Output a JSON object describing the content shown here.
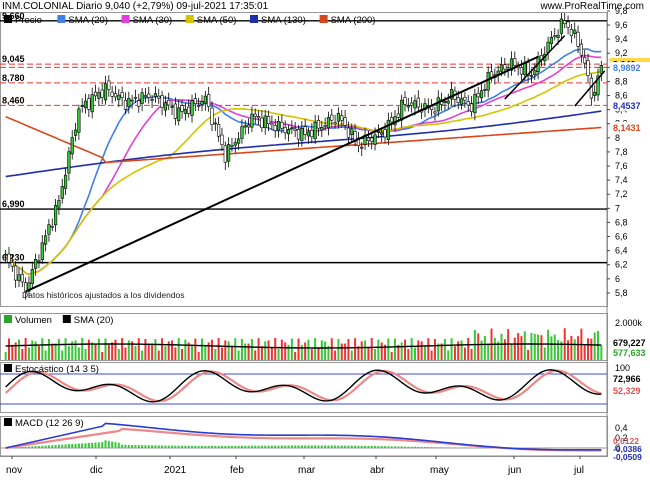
{
  "header": {
    "title": "INM.COLONIAL Diario 9,040 (+2,79%) 09-jul-2021 17:35:01",
    "site": "www.ProRealTime.com"
  },
  "chart_data": {
    "type": "candlestick",
    "price_panel": {
      "legend": [
        {
          "label": "Precio",
          "color": "#000000"
        },
        {
          "label": "SMA (20)",
          "color": "#3f7fe6"
        },
        {
          "label": "SMA (30)",
          "color": "#e040d8"
        },
        {
          "label": "SMA (50)",
          "color": "#d4c400"
        },
        {
          "label": "SMA (130)",
          "color": "#1f2fa8"
        },
        {
          "label": "SMA (200)",
          "color": "#d9461a"
        }
      ],
      "y_ticks": [
        "9,8",
        "9,6",
        "9,4",
        "9,2",
        "9",
        "8,8",
        "8,6",
        "8,4",
        "8,2",
        "8",
        "7,8",
        "7,6",
        "7,4",
        "7,2",
        "7",
        "6,8",
        "6,6",
        "6,4",
        "6,2",
        "6",
        "5,8"
      ],
      "y_range": [
        5.7,
        9.87
      ],
      "level_labels": [
        "9,660",
        "9,045",
        "8,780",
        "8,460",
        "6,990",
        "6,230"
      ],
      "value_tags": [
        {
          "text": "9,0455",
          "color": "#e040d8",
          "bg": "#ffffff",
          "price": 9.0455
        },
        {
          "text": "9,040",
          "color": "#000000",
          "bg": "#ffd84a",
          "price": 9.04
        },
        {
          "text": "8,9892",
          "color": "#3f7fe6",
          "bg": "#ffffff",
          "price": 8.9892
        },
        {
          "text": "8,4537",
          "color": "#1f2fa8",
          "bg": "#ffffff",
          "price": 8.4537
        },
        {
          "text": "8,1431",
          "color": "#d9461a",
          "bg": "#ffffff",
          "price": 8.1431
        }
      ],
      "note": "Datos históricos ajustados a los dividendos",
      "horizontal_levels_black": [
        9.66,
        6.99,
        6.23
      ],
      "horizontal_levels_red_dashed": [
        9.045,
        9.0,
        8.78,
        8.46
      ]
    },
    "volume_panel": {
      "legend": [
        {
          "label": "Volumen",
          "color": "#2aa52a"
        },
        {
          "label": "SMA (20)",
          "color": "#000000"
        }
      ],
      "y_ticks": [
        "2.000k"
      ],
      "value_tags": [
        {
          "text": "679,227",
          "color": "#000000"
        },
        {
          "text": "577,633",
          "color": "#2aa52a"
        }
      ]
    },
    "stochastic_panel": {
      "legend": [
        {
          "label": "Estocástico (14 3 5)",
          "color": "#000000"
        }
      ],
      "y_ticks": [
        "100"
      ],
      "value_tags": [
        {
          "text": "72,966",
          "color": "#000000"
        },
        {
          "text": "52,329",
          "color": "#e05050"
        }
      ]
    },
    "macd_panel": {
      "legend": [
        {
          "label": "MACD (12 26 9)",
          "color": "#000000"
        }
      ],
      "y_ticks": [
        "0,4",
        "0,2",
        "0"
      ],
      "value_tags": [
        {
          "text": "0,0122",
          "color": "#e05050"
        },
        {
          "text": "-0,0386",
          "color": "#1f2fa8"
        },
        {
          "text": "-0,0509",
          "color": "#1f2fa8"
        }
      ]
    },
    "x_labels": [
      "nov",
      "dic",
      "2021",
      "feb",
      "mar",
      "abr",
      "may",
      "jun",
      "jul"
    ],
    "series_description": "Daily candles from late Oct 2020 to 9 Jul 2021"
  }
}
